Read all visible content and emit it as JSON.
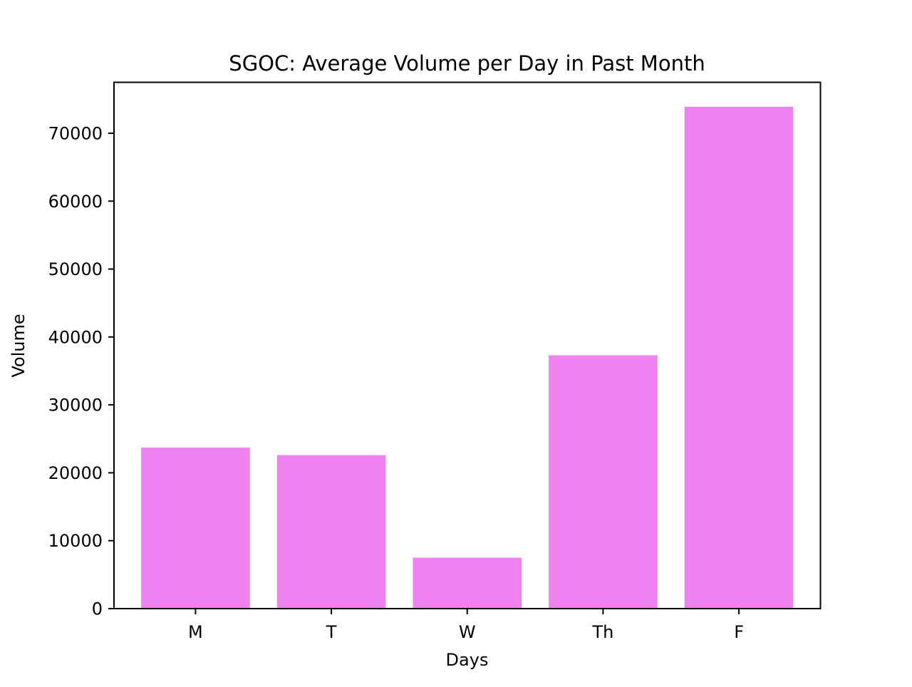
{
  "chart_data": {
    "type": "bar",
    "title": "SGOC: Average Volume per Day in Past Month",
    "xlabel": "Days",
    "ylabel": "Volume",
    "categories": [
      "M",
      "T",
      "W",
      "Th",
      "F"
    ],
    "values": [
      23700,
      22600,
      7500,
      37300,
      73900
    ],
    "ylim": [
      0,
      77500
    ],
    "yticks": [
      0,
      10000,
      20000,
      30000,
      40000,
      50000,
      60000,
      70000
    ],
    "ytick_labels": [
      "0",
      "10000",
      "20000",
      "30000",
      "40000",
      "50000",
      "60000",
      "70000"
    ],
    "bar_color": "#ee82ee",
    "grid": false,
    "legend": "none"
  }
}
